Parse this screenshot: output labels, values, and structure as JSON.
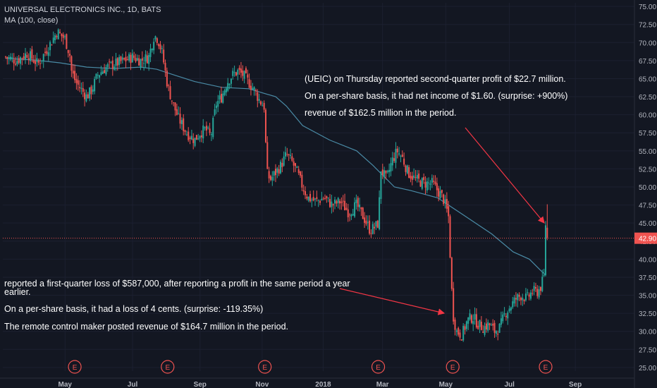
{
  "header": {
    "symbol_line": "UNIVERSAL ELECTRONICS INC., 1D, BATS",
    "indicator_line": "MA (100, close)"
  },
  "annotations": {
    "top": [
      "(UEIC) on Thursday reported second-quarter profit of $22.7 million.",
      "On a per-share basis, it had net income of $1.60. (surprise: +900%)",
      "revenue of $162.5 million in the period."
    ],
    "bottom": [
      "reported a first-quarter loss of $587,000, after reporting a profit in the same period a year earlier.",
      "On a per-share basis, it had a loss of 4 cents. (surprise: -119.35%)",
      "The remote control maker posted revenue of $164.7 million in the period."
    ]
  },
  "colors": {
    "background": "#131722",
    "up": "#26a69a",
    "down": "#ef5350",
    "ma": "#4a8ba6",
    "arrow": "#f23645",
    "price_line": "#ef5350",
    "grid": "#1c2030",
    "axis_text": "#b2b5be"
  },
  "chart_data": {
    "type": "candlestick",
    "title": "UNIVERSAL ELECTRONICS INC., 1D, BATS",
    "grid": true,
    "y_axis_position": "right",
    "ylim": [
      24.5,
      75.5
    ],
    "y_ticks": [
      "25.00",
      "27.50",
      "30.00",
      "32.50",
      "35.00",
      "37.50",
      "40.00",
      "42.50",
      "45.00",
      "47.50",
      "50.00",
      "52.50",
      "55.00",
      "57.50",
      "60.00",
      "62.50",
      "65.00",
      "67.50",
      "70.00",
      "72.50",
      "75.00"
    ],
    "x_ticks": [
      {
        "label": "May",
        "t": 0.11
      },
      {
        "label": "Jul",
        "t": 0.235
      },
      {
        "label": "Sep",
        "t": 0.36
      },
      {
        "label": "Nov",
        "t": 0.475
      },
      {
        "label": "2018",
        "t": 0.588
      },
      {
        "label": "Mar",
        "t": 0.698
      },
      {
        "label": "May",
        "t": 0.815
      },
      {
        "label": "Jul",
        "t": 0.933
      },
      {
        "label": "Sep",
        "t": 1.055
      }
    ],
    "earnings_markers": [
      {
        "label": "E",
        "t": 0.128
      },
      {
        "label": "E",
        "t": 0.3
      },
      {
        "label": "E",
        "t": 0.48
      },
      {
        "label": "E",
        "t": 0.69
      },
      {
        "label": "E",
        "t": 0.828
      },
      {
        "label": "E",
        "t": 1.0
      }
    ],
    "last_price": {
      "value": 42.9,
      "label": "42.90"
    },
    "close_series": {
      "name": "price",
      "points": [
        [
          0,
          68.0
        ],
        [
          0.02,
          67.5
        ],
        [
          0.04,
          68.5
        ],
        [
          0.06,
          67.0
        ],
        [
          0.08,
          69.5
        ],
        [
          0.095,
          71.5
        ],
        [
          0.11,
          70.5
        ],
        [
          0.12,
          68.0
        ],
        [
          0.122,
          66.0
        ],
        [
          0.13,
          64.5
        ],
        [
          0.14,
          63.5
        ],
        [
          0.15,
          62.5
        ],
        [
          0.16,
          63.5
        ],
        [
          0.17,
          65.5
        ],
        [
          0.185,
          66.5
        ],
        [
          0.2,
          67.0
        ],
        [
          0.22,
          67.5
        ],
        [
          0.235,
          68.0
        ],
        [
          0.25,
          67.5
        ],
        [
          0.265,
          68.0
        ],
        [
          0.275,
          71.0
        ],
        [
          0.282,
          70.5
        ],
        [
          0.29,
          68.5
        ],
        [
          0.3,
          64.0
        ],
        [
          0.31,
          61.5
        ],
        [
          0.32,
          59.5
        ],
        [
          0.335,
          57.5
        ],
        [
          0.35,
          56.5
        ],
        [
          0.36,
          57.5
        ],
        [
          0.37,
          58.0
        ],
        [
          0.38,
          57.0
        ],
        [
          0.39,
          61.5
        ],
        [
          0.4,
          62.5
        ],
        [
          0.41,
          64.5
        ],
        [
          0.42,
          65.5
        ],
        [
          0.43,
          66.0
        ],
        [
          0.44,
          65.5
        ],
        [
          0.45,
          64.5
        ],
        [
          0.46,
          63.5
        ],
        [
          0.47,
          62.0
        ],
        [
          0.48,
          61.0
        ],
        [
          0.483,
          52.0
        ],
        [
          0.49,
          51.0
        ],
        [
          0.5,
          52.0
        ],
        [
          0.51,
          53.0
        ],
        [
          0.52,
          54.5
        ],
        [
          0.53,
          53.5
        ],
        [
          0.54,
          52.0
        ],
        [
          0.55,
          50.0
        ],
        [
          0.56,
          48.5
        ],
        [
          0.575,
          48.0
        ],
        [
          0.59,
          48.5
        ],
        [
          0.605,
          47.5
        ],
        [
          0.62,
          48.0
        ],
        [
          0.635,
          46.5
        ],
        [
          0.65,
          47.5
        ],
        [
          0.665,
          45.5
        ],
        [
          0.675,
          44.0
        ],
        [
          0.685,
          44.5
        ],
        [
          0.69,
          45.0
        ],
        [
          0.695,
          52.5
        ],
        [
          0.705,
          51.0
        ],
        [
          0.715,
          53.5
        ],
        [
          0.725,
          55.0
        ],
        [
          0.735,
          54.0
        ],
        [
          0.745,
          52.0
        ],
        [
          0.76,
          51.0
        ],
        [
          0.775,
          50.5
        ],
        [
          0.79,
          50.5
        ],
        [
          0.8,
          49.5
        ],
        [
          0.81,
          48.5
        ],
        [
          0.82,
          46.0
        ],
        [
          0.828,
          32.5
        ],
        [
          0.835,
          30.0
        ],
        [
          0.845,
          29.5
        ],
        [
          0.855,
          31.5
        ],
        [
          0.865,
          32.0
        ],
        [
          0.875,
          31.0
        ],
        [
          0.885,
          30.5
        ],
        [
          0.895,
          31.0
        ],
        [
          0.905,
          30.0
        ],
        [
          0.915,
          30.5
        ],
        [
          0.925,
          32.5
        ],
        [
          0.935,
          33.5
        ],
        [
          0.945,
          34.5
        ],
        [
          0.955,
          35.0
        ],
        [
          0.965,
          34.5
        ],
        [
          0.975,
          35.5
        ],
        [
          0.985,
          35.5
        ],
        [
          0.99,
          36.0
        ],
        [
          0.997,
          37.5
        ],
        [
          1.0,
          45.0
        ],
        [
          1.003,
          42.9
        ]
      ]
    },
    "ma_series": {
      "name": "MA (100, close)",
      "points": [
        [
          0,
          67.8
        ],
        [
          0.05,
          67.6
        ],
        [
          0.1,
          67.2
        ],
        [
          0.15,
          66.6
        ],
        [
          0.2,
          66.4
        ],
        [
          0.25,
          66.6
        ],
        [
          0.28,
          66.3
        ],
        [
          0.3,
          65.8
        ],
        [
          0.35,
          64.6
        ],
        [
          0.4,
          63.8
        ],
        [
          0.45,
          63.6
        ],
        [
          0.5,
          62.5
        ],
        [
          0.52,
          61.2
        ],
        [
          0.55,
          58.5
        ],
        [
          0.6,
          56.5
        ],
        [
          0.65,
          55.0
        ],
        [
          0.68,
          53.0
        ],
        [
          0.72,
          50.0
        ],
        [
          0.75,
          49.5
        ],
        [
          0.8,
          48.5
        ],
        [
          0.85,
          46.0
        ],
        [
          0.9,
          43.5
        ],
        [
          0.94,
          41.0
        ],
        [
          0.97,
          40.0
        ],
        [
          0.99,
          38.5
        ],
        [
          1.0,
          37.8
        ]
      ]
    }
  }
}
